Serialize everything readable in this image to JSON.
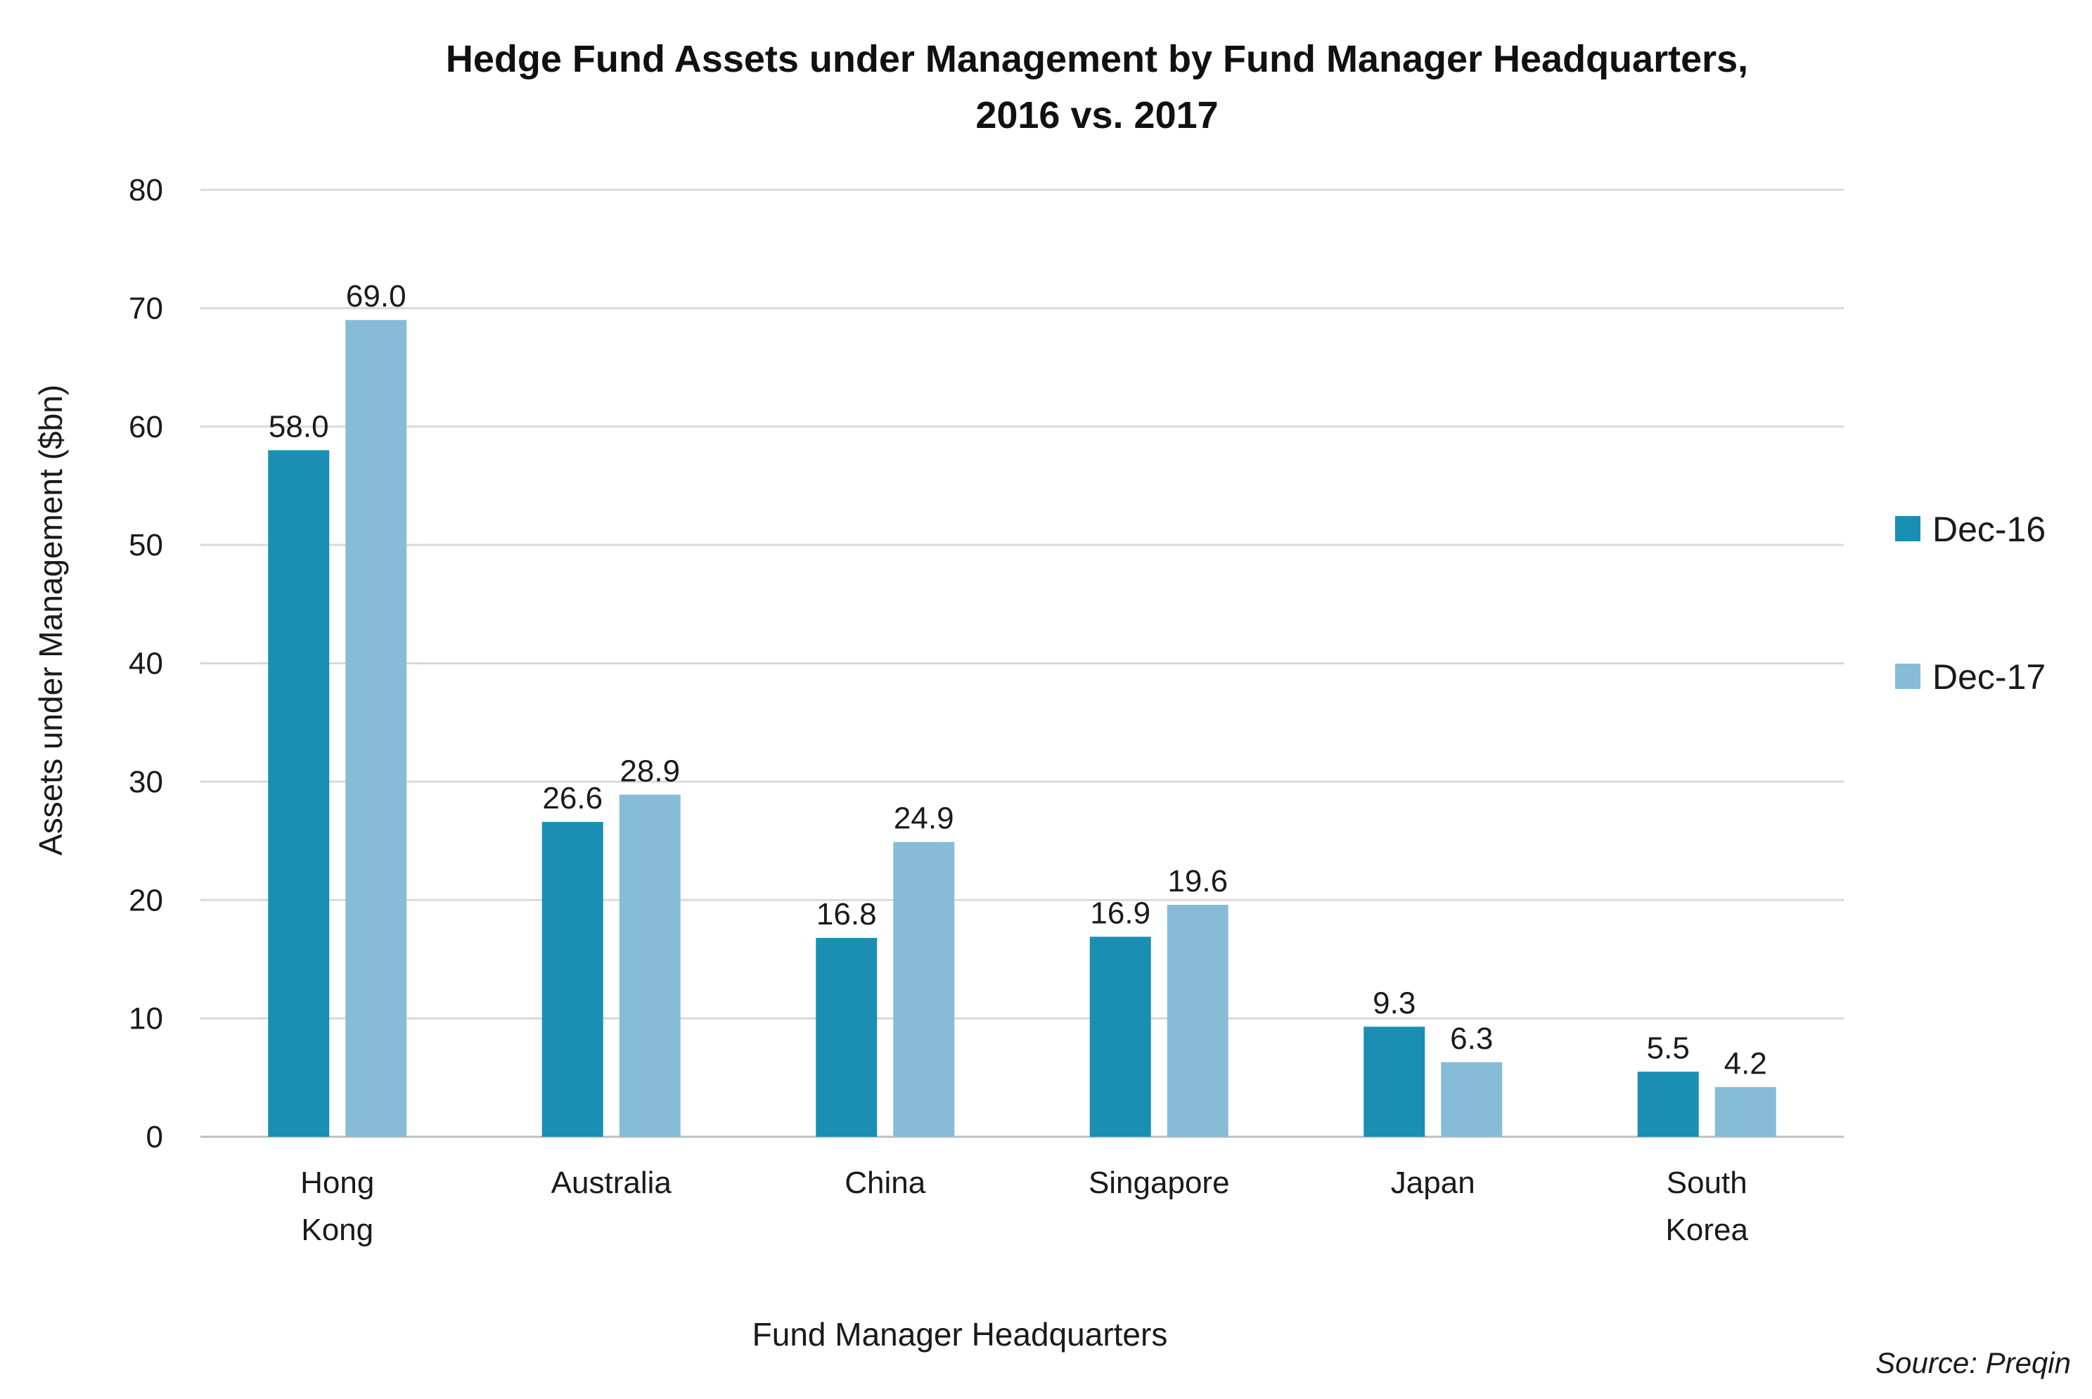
{
  "chart_data": {
    "type": "bar",
    "title_lines": [
      "Hedge Fund Assets under Management by Fund Manager Headquarters,",
      "2016 vs. 2017"
    ],
    "xlabel": "Fund Manager Headquarters",
    "ylabel": "Assets under Management ($bn)",
    "ylim": [
      0,
      80
    ],
    "yticks": [
      "0",
      "10",
      "20",
      "30",
      "40",
      "50",
      "60",
      "70",
      "80"
    ],
    "grid": true,
    "legend_position": "right",
    "categories": [
      [
        "Hong",
        "Kong"
      ],
      [
        "Australia"
      ],
      [
        "China"
      ],
      [
        "Singapore"
      ],
      [
        "Japan"
      ],
      [
        "South",
        "Korea"
      ]
    ],
    "series": [
      {
        "name": "Dec-16",
        "color": "#1a8fb3",
        "values": [
          58.0,
          26.6,
          16.8,
          16.9,
          9.3,
          5.5
        ],
        "labels": [
          "58.0",
          "26.6",
          "16.8",
          "16.9",
          "9.3",
          "5.5"
        ]
      },
      {
        "name": "Dec-17",
        "color": "#87bcd6",
        "values": [
          69.0,
          28.9,
          24.9,
          19.6,
          6.3,
          4.2
        ],
        "labels": [
          "69.0",
          "28.9",
          "24.9",
          "19.6",
          "6.3",
          "4.2"
        ]
      }
    ],
    "source": "Source: Preqin",
    "gridline_color": "#d9d9d9",
    "axis_color": "#bfbfbf"
  }
}
